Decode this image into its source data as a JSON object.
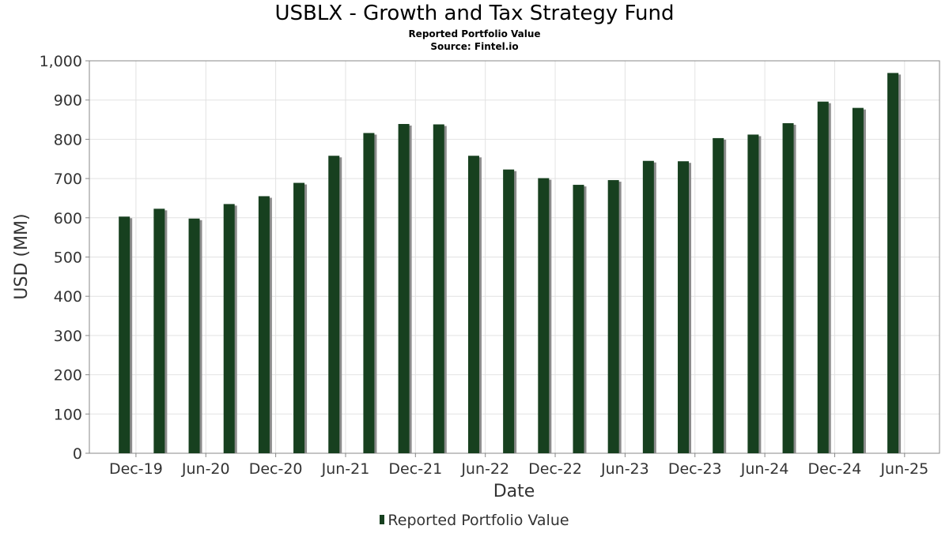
{
  "chart_data": {
    "type": "bar",
    "title": "USBLX - Growth and Tax Strategy Fund",
    "subtitles": [
      "Reported Portfolio Value",
      "Source: Fintel.io"
    ],
    "xlabel": "Date",
    "ylabel": "USD (MM)",
    "ylim": [
      0,
      1000
    ],
    "yticks": [
      0,
      100,
      200,
      300,
      400,
      500,
      600,
      700,
      800,
      900,
      1000
    ],
    "ytick_labels": [
      "0",
      "100",
      "200",
      "300",
      "400",
      "500",
      "600",
      "700",
      "800",
      "900",
      "1,000"
    ],
    "xtick_labels": [
      "Dec-19",
      "Jun-20",
      "Dec-20",
      "Jun-21",
      "Dec-21",
      "Jun-22",
      "Dec-22",
      "Jun-23",
      "Dec-23",
      "Jun-24",
      "Dec-24",
      "Jun-25"
    ],
    "x_range": [
      "2019-08",
      "2025-09"
    ],
    "grid": true,
    "legend_position": "bottom-center",
    "series": [
      {
        "name": "Reported Portfolio Value",
        "color": "#17401f",
        "x": [
          "2019-11",
          "2020-02",
          "2020-05",
          "2020-08",
          "2020-11",
          "2021-02",
          "2021-05",
          "2021-08",
          "2021-11",
          "2022-02",
          "2022-05",
          "2022-08",
          "2022-11",
          "2023-02",
          "2023-05",
          "2023-08",
          "2023-11",
          "2024-02",
          "2024-05",
          "2024-08",
          "2024-11",
          "2025-02",
          "2025-05"
        ],
        "values": [
          603,
          623,
          598,
          635,
          655,
          689,
          758,
          816,
          839,
          838,
          758,
          723,
          701,
          684,
          696,
          745,
          744,
          803,
          812,
          841,
          896,
          880,
          969
        ]
      }
    ]
  }
}
